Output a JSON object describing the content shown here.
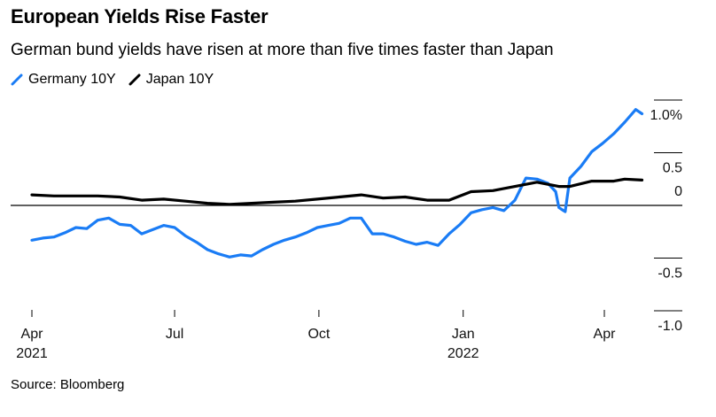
{
  "title": "European Yields Rise Faster",
  "subtitle": "German bund yields have risen at more than five times faster than Japan",
  "source": "Source: Bloomberg",
  "chart_data": {
    "type": "line",
    "x_unit": "date",
    "xlim": [
      "2021-04-01",
      "2022-04-30"
    ],
    "ylim": [
      -1.0,
      1.0
    ],
    "y_ticks": [
      {
        "value": 1.0,
        "label": "1.0%"
      },
      {
        "value": 0.5,
        "label": "0.5"
      },
      {
        "value": 0.0,
        "label": "0"
      },
      {
        "value": -0.5,
        "label": "-0.5"
      },
      {
        "value": -1.0,
        "label": "-1.0"
      }
    ],
    "x_ticks": [
      {
        "date": "2021-04-01",
        "label": "Apr",
        "year": "2021"
      },
      {
        "date": "2021-07-01",
        "label": "Jul",
        "year": ""
      },
      {
        "date": "2021-10-01",
        "label": "Oct",
        "year": ""
      },
      {
        "date": "2022-01-01",
        "label": "Jan",
        "year": "2022"
      },
      {
        "date": "2022-04-01",
        "label": "Apr",
        "year": ""
      }
    ],
    "zero_line": true,
    "legend_position": "top-left",
    "series": [
      {
        "name": "Germany 10Y",
        "color": "#1a7cf5",
        "points": [
          [
            "2021-04-01",
            -0.33
          ],
          [
            "2021-04-08",
            -0.31
          ],
          [
            "2021-04-15",
            -0.3
          ],
          [
            "2021-04-22",
            -0.26
          ],
          [
            "2021-04-29",
            -0.21
          ],
          [
            "2021-05-06",
            -0.22
          ],
          [
            "2021-05-13",
            -0.14
          ],
          [
            "2021-05-20",
            -0.12
          ],
          [
            "2021-05-27",
            -0.18
          ],
          [
            "2021-06-03",
            -0.19
          ],
          [
            "2021-06-10",
            -0.27
          ],
          [
            "2021-06-17",
            -0.23
          ],
          [
            "2021-06-24",
            -0.19
          ],
          [
            "2021-07-01",
            -0.21
          ],
          [
            "2021-07-08",
            -0.29
          ],
          [
            "2021-07-15",
            -0.35
          ],
          [
            "2021-07-22",
            -0.42
          ],
          [
            "2021-07-29",
            -0.46
          ],
          [
            "2021-08-05",
            -0.49
          ],
          [
            "2021-08-12",
            -0.47
          ],
          [
            "2021-08-19",
            -0.48
          ],
          [
            "2021-08-26",
            -0.42
          ],
          [
            "2021-09-02",
            -0.37
          ],
          [
            "2021-09-09",
            -0.33
          ],
          [
            "2021-09-16",
            -0.3
          ],
          [
            "2021-09-23",
            -0.26
          ],
          [
            "2021-09-30",
            -0.21
          ],
          [
            "2021-10-07",
            -0.19
          ],
          [
            "2021-10-14",
            -0.17
          ],
          [
            "2021-10-21",
            -0.12
          ],
          [
            "2021-10-28",
            -0.12
          ],
          [
            "2021-11-04",
            -0.27
          ],
          [
            "2021-11-11",
            -0.27
          ],
          [
            "2021-11-18",
            -0.3
          ],
          [
            "2021-11-25",
            -0.34
          ],
          [
            "2021-12-02",
            -0.37
          ],
          [
            "2021-12-09",
            -0.35
          ],
          [
            "2021-12-16",
            -0.38
          ],
          [
            "2021-12-23",
            -0.27
          ],
          [
            "2021-12-30",
            -0.18
          ],
          [
            "2022-01-06",
            -0.07
          ],
          [
            "2022-01-13",
            -0.04
          ],
          [
            "2022-01-20",
            -0.02
          ],
          [
            "2022-01-27",
            -0.05
          ],
          [
            "2022-02-03",
            0.05
          ],
          [
            "2022-02-10",
            0.26
          ],
          [
            "2022-02-17",
            0.25
          ],
          [
            "2022-02-24",
            0.21
          ],
          [
            "2022-03-01",
            0.13
          ],
          [
            "2022-03-03",
            -0.02
          ],
          [
            "2022-03-07",
            -0.06
          ],
          [
            "2022-03-10",
            0.26
          ],
          [
            "2022-03-17",
            0.37
          ],
          [
            "2022-03-24",
            0.51
          ],
          [
            "2022-03-31",
            0.59
          ],
          [
            "2022-04-07",
            0.68
          ],
          [
            "2022-04-14",
            0.79
          ],
          [
            "2022-04-21",
            0.91
          ],
          [
            "2022-04-25",
            0.87
          ]
        ]
      },
      {
        "name": "Japan 10Y",
        "color": "#000000",
        "points": [
          [
            "2021-04-01",
            0.1
          ],
          [
            "2021-04-15",
            0.09
          ],
          [
            "2021-04-29",
            0.09
          ],
          [
            "2021-05-13",
            0.09
          ],
          [
            "2021-05-27",
            0.08
          ],
          [
            "2021-06-10",
            0.05
          ],
          [
            "2021-06-24",
            0.06
          ],
          [
            "2021-07-08",
            0.04
          ],
          [
            "2021-07-22",
            0.02
          ],
          [
            "2021-08-05",
            0.01
          ],
          [
            "2021-08-19",
            0.02
          ],
          [
            "2021-09-02",
            0.03
          ],
          [
            "2021-09-16",
            0.04
          ],
          [
            "2021-09-30",
            0.06
          ],
          [
            "2021-10-14",
            0.08
          ],
          [
            "2021-10-28",
            0.1
          ],
          [
            "2021-11-11",
            0.07
          ],
          [
            "2021-11-25",
            0.08
          ],
          [
            "2021-12-09",
            0.05
          ],
          [
            "2021-12-23",
            0.05
          ],
          [
            "2022-01-06",
            0.13
          ],
          [
            "2022-01-20",
            0.14
          ],
          [
            "2022-02-03",
            0.18
          ],
          [
            "2022-02-17",
            0.22
          ],
          [
            "2022-03-03",
            0.18
          ],
          [
            "2022-03-10",
            0.18
          ],
          [
            "2022-03-24",
            0.23
          ],
          [
            "2022-04-07",
            0.23
          ],
          [
            "2022-04-14",
            0.25
          ],
          [
            "2022-04-25",
            0.24
          ]
        ]
      }
    ]
  }
}
